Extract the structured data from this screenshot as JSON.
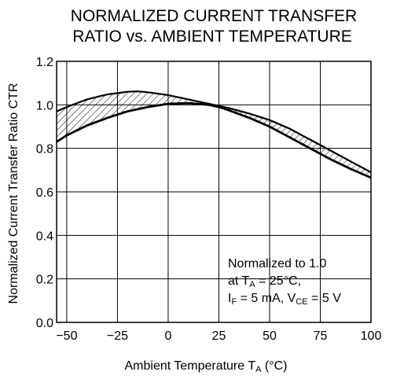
{
  "chart_data": {
    "type": "area",
    "title_lines": [
      "NORMALIZED CURRENT TRANSFER",
      "RATIO vs. AMBIENT TEMPERATURE"
    ],
    "xlabel": {
      "main": "Ambient Temperature  T",
      "subscript": "A",
      "unit": " (°C)"
    },
    "ylabel": "Normalized Current Transfer Ratio  CTR",
    "xlim": [
      -55,
      100
    ],
    "ylim": [
      0,
      1.2
    ],
    "x_ticks": [
      -50,
      -25,
      0,
      25,
      50,
      75,
      100
    ],
    "x_tick_labels": [
      "−50",
      "−25",
      "0",
      "25",
      "50",
      "75",
      "100"
    ],
    "y_ticks": [
      0,
      0.2,
      0.4,
      0.6,
      0.8,
      1.0,
      1.2
    ],
    "y_tick_labels": [
      "0.0",
      "0.2",
      "0.4",
      "0.6",
      "0.8",
      "1.0",
      "1.2"
    ],
    "grid": true,
    "band_fill": "hatched",
    "series": [
      {
        "x": [
          -55,
          -50,
          -40,
          -30,
          -20,
          -15,
          -10,
          0,
          10,
          20,
          25,
          30,
          40,
          50,
          60,
          70,
          80,
          90,
          100
        ],
        "values": [
          0.97,
          0.99,
          1.025,
          1.048,
          1.06,
          1.062,
          1.058,
          1.045,
          1.025,
          1.005,
          0.995,
          0.985,
          0.96,
          0.93,
          0.89,
          0.84,
          0.79,
          0.74,
          0.69
        ]
      },
      {
        "x": [
          -55,
          -50,
          -40,
          -30,
          -20,
          -10,
          0,
          10,
          20,
          25,
          30,
          40,
          50,
          60,
          70,
          80,
          90,
          100
        ],
        "values": [
          0.83,
          0.86,
          0.905,
          0.94,
          0.97,
          0.99,
          1.005,
          1.008,
          1.0,
          0.99,
          0.975,
          0.94,
          0.9,
          0.85,
          0.8,
          0.75,
          0.705,
          0.665
        ]
      }
    ],
    "annotation": {
      "line1": "Normalized to 1.0",
      "line2_prefix": "at T",
      "line2_sub": "A",
      "line2_suffix": " = 25°C,",
      "line3_a": "I",
      "line3_a_sub": "F",
      "line3_b": " = 5 mA, V",
      "line3_b_sub": "CE",
      "line3_c": " = 5 V"
    }
  }
}
